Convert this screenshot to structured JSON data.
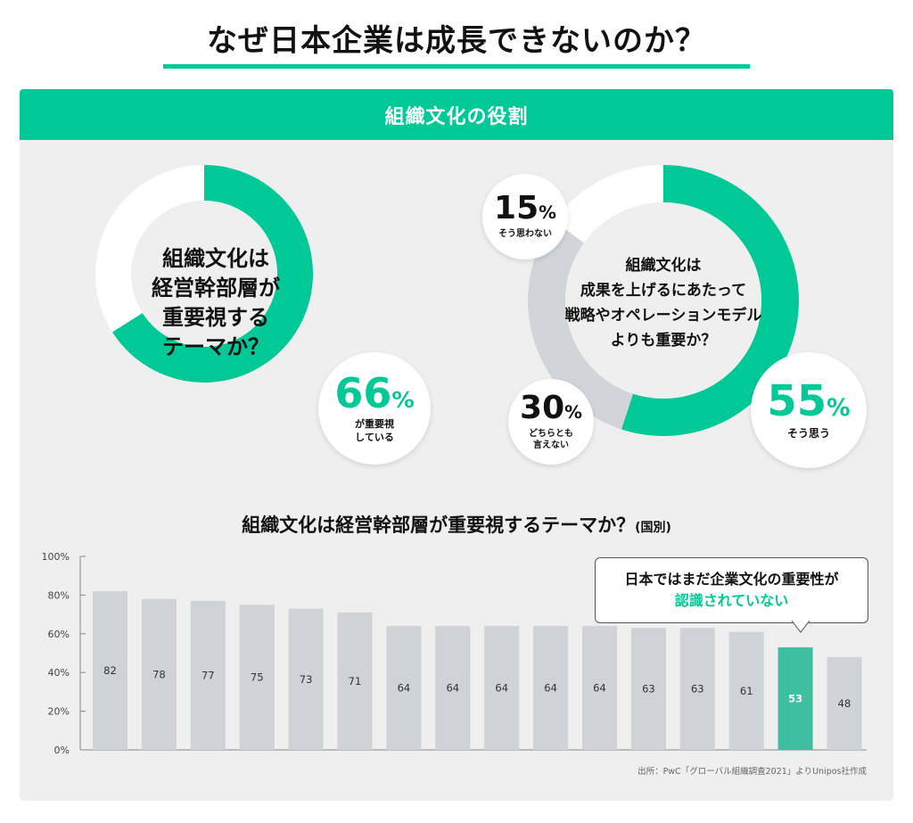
{
  "title": "なぜ日本企業は成長できないのか？",
  "panel_header": "組織文化の役割",
  "donut_left": {
    "lines": [
      "組織文化は",
      "経営幹部層が",
      "重要視する",
      "テーマか？"
    ],
    "value": 66,
    "pct_text": "66",
    "unit": "%",
    "caption": [
      "が重要視",
      "している"
    ],
    "accent": "#00c896",
    "rest": "#ffffff"
  },
  "donut_right": {
    "lines": [
      "組織文化は",
      "成果を上げるにあたって",
      "戦略やオペレーションモデル",
      "よりも重要か？"
    ],
    "segments": [
      {
        "pct_text": "55",
        "value": 55,
        "caption": [
          "そう思う"
        ],
        "color": "#00c896"
      },
      {
        "pct_text": "30",
        "value": 30,
        "caption": [
          "どちらとも",
          "言えない"
        ],
        "color": "#d1d4d8"
      },
      {
        "pct_text": "15",
        "value": 15,
        "caption": [
          "そう思わない"
        ],
        "color": "#ffffff"
      }
    ],
    "unit": "%"
  },
  "bar_title": "組織文化は経営幹部層が重要視するテーマか？",
  "bar_title_suffix": "(国別)",
  "callout": {
    "line1": "日本ではまだ企業文化の重要性が",
    "line2": "認識されていない"
  },
  "source": "出所：PwC「グローバル組織調査2021」よりUnipos社作成",
  "colors": {
    "accent": "#00c896",
    "bar": "#cfd2d6",
    "highlight_bar": "#3dbfa0"
  },
  "chart_data": [
    {
      "type": "pie",
      "values": [
        66,
        34
      ]
    },
    {
      "type": "pie",
      "values": [
        55,
        30,
        15
      ]
    },
    {
      "type": "bar",
      "categories": [
        "",
        "",
        "",
        "",
        "",
        "",
        "",
        "",
        "",
        "",
        "",
        "",
        "",
        "",
        "",
        ""
      ],
      "values": [
        82,
        78,
        77,
        75,
        73,
        71,
        64,
        64,
        64,
        64,
        64,
        63,
        63,
        61,
        53,
        48
      ],
      "highlight_index": 14,
      "ylim": [
        0,
        100
      ],
      "yticks": [
        "0%",
        "20%",
        "40%",
        "60%",
        "80%",
        "100%"
      ],
      "ytick_values": [
        0,
        20,
        40,
        60,
        80,
        100
      ],
      "grid": false
    }
  ]
}
